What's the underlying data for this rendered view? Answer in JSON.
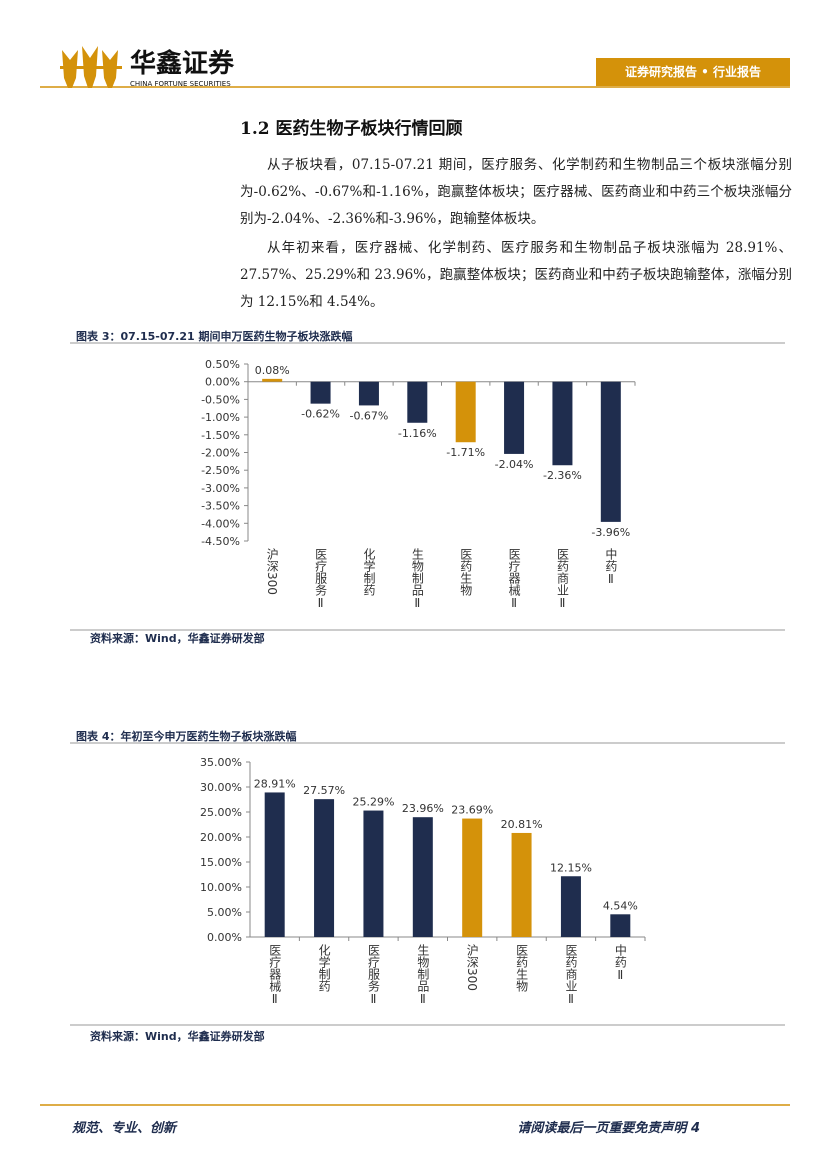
{
  "header": {
    "brand": "华鑫证券",
    "brand_en": "CHINA FORTUNE SECURITIES",
    "tag": "证券研究报告 • 行业报告"
  },
  "section_title": "1.2 医药生物子板块行情回顾",
  "paragraphs": [
    "从子板块看，07.15-07.21 期间，医疗服务、化学制药和生物制品三个板块涨幅分别为-0.62%、-0.67%和-1.16%，跑赢整体板块；医疗器械、医药商业和中药三个板块涨幅分别为-2.04%、-2.36%和-3.96%，跑输整体板块。",
    "从年初来看，医疗器械、化学制药、医疗服务和生物制品子板块涨幅为 28.91%、27.57%、25.29%和 23.96%，跑赢整体板块；医药商业和中药子板块跑输整体，涨幅分别为 12.15%和 4.54%。"
  ],
  "chart_data": [
    {
      "type": "bar",
      "title": "图表 3：07.15-07.21 期间申万医药生物子板块涨跌幅",
      "source": "资料来源：Wind，华鑫证券研发部",
      "categories": [
        "沪深300",
        "医疗服务Ⅱ",
        "化学制药",
        "生物制品Ⅱ",
        "医药生物",
        "医疗器械Ⅱ",
        "医药商业Ⅱ",
        "中药Ⅱ"
      ],
      "values": [
        0.08,
        -0.62,
        -0.67,
        -1.16,
        -1.71,
        -2.04,
        -2.36,
        -3.96
      ],
      "value_labels": [
        "0.08%",
        "-0.62%",
        "-0.67%",
        "-1.16%",
        "-1.71%",
        "-2.04%",
        "-2.36%",
        "-3.96%"
      ],
      "colors": [
        "#d4920a",
        "#1f2d4e",
        "#1f2d4e",
        "#1f2d4e",
        "#d4920a",
        "#1f2d4e",
        "#1f2d4e",
        "#1f2d4e"
      ],
      "ylim": [
        -4.5,
        0.5
      ],
      "yticks": [
        {
          "value": 0.5,
          "label": "0.50%"
        },
        {
          "value": 0,
          "label": "0.00%"
        },
        {
          "value": -0.5,
          "label": "-0.50%"
        },
        {
          "value": -1,
          "label": "-1.00%"
        },
        {
          "value": -1.5,
          "label": "-1.50%"
        },
        {
          "value": -2,
          "label": "-2.00%"
        },
        {
          "value": -2.5,
          "label": "-2.50%"
        },
        {
          "value": -3,
          "label": "-3.00%"
        },
        {
          "value": -3.5,
          "label": "-3.50%"
        },
        {
          "value": -4,
          "label": "-4.00%"
        },
        {
          "value": -4.5,
          "label": "-4.50%"
        }
      ]
    },
    {
      "type": "bar",
      "title": "图表 4：年初至今申万医药生物子板块涨跌幅",
      "source": "资料来源：Wind，华鑫证券研发部",
      "categories": [
        "医疗器械Ⅱ",
        "化学制药",
        "医疗服务Ⅱ",
        "生物制品Ⅱ",
        "沪深300",
        "医药生物",
        "医药商业Ⅱ",
        "中药Ⅱ"
      ],
      "values": [
        28.91,
        27.57,
        25.29,
        23.96,
        23.69,
        20.81,
        12.15,
        4.54
      ],
      "value_labels": [
        "28.91%",
        "27.57%",
        "25.29%",
        "23.96%",
        "23.69%",
        "20.81%",
        "12.15%",
        "4.54%"
      ],
      "colors": [
        "#1f2d4e",
        "#1f2d4e",
        "#1f2d4e",
        "#1f2d4e",
        "#d4920a",
        "#d4920a",
        "#1f2d4e",
        "#1f2d4e"
      ],
      "ylim": [
        0,
        35
      ],
      "yticks": [
        {
          "value": 0,
          "label": "0.00%"
        },
        {
          "value": 5,
          "label": "5.00%"
        },
        {
          "value": 10,
          "label": "10.00%"
        },
        {
          "value": 15,
          "label": "15.00%"
        },
        {
          "value": 20,
          "label": "20.00%"
        },
        {
          "value": 25,
          "label": "25.00%"
        },
        {
          "value": 30,
          "label": "30.00%"
        },
        {
          "value": 35,
          "label": "35.00%"
        }
      ]
    }
  ],
  "footer": {
    "left": "规范、专业、创新",
    "right": "请阅读最后一页重要免责声明 4"
  }
}
